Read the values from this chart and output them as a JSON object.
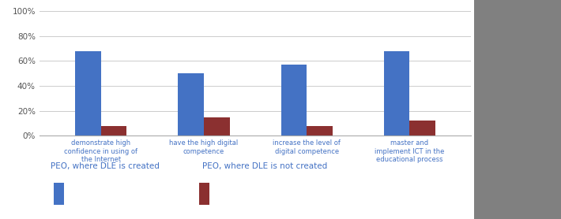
{
  "categories": [
    "demonstrate high\nconfidence in using of\nthe Internet",
    "have the high digital\ncompetence",
    "increase the level of\ndigital competence",
    "master and\nimplement ICT in the\neducational process"
  ],
  "blue_values": [
    68,
    50,
    57,
    68
  ],
  "red_values": [
    8,
    15,
    8,
    12
  ],
  "blue_color": "#4472C4",
  "red_color": "#8B3030",
  "ylim": [
    0,
    100
  ],
  "yticks": [
    0,
    20,
    40,
    60,
    80,
    100
  ],
  "ytick_labels": [
    "0%",
    "20%",
    "40%",
    "60%",
    "80%",
    "100%"
  ],
  "legend_label_blue": "PEO, where DLE is created",
  "legend_label_red": "PEO, where DLE is not created",
  "background_color": "#FFFFFF",
  "outer_background": "#808080",
  "bar_width": 0.25,
  "text_color": "#4472C4",
  "label_fontsize": 6,
  "legend_fontsize": 7.5,
  "ytick_fontsize": 7.5
}
